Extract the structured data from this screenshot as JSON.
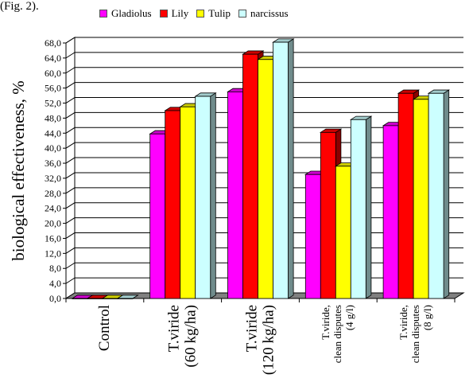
{
  "page": {
    "title_fragment": "(Fig. 2)."
  },
  "chart_data": {
    "type": "bar",
    "categories": [
      [
        "Control"
      ],
      [
        "T.viride",
        "(60 kg/ha)"
      ],
      [
        "T.viride",
        "(120 kg/ha)"
      ],
      [
        "T.viride,",
        "clean disputes",
        "(4 g/l)"
      ],
      [
        "T.viride,",
        "clean disputes",
        "(8 g/l)"
      ]
    ],
    "series": [
      {
        "name": "Gladiolus",
        "color": "#ff00ff",
        "values": [
          0.0,
          43.8,
          55.0,
          33.0,
          46.0
        ]
      },
      {
        "name": "Lily",
        "color": "#ff0000",
        "values": [
          0.0,
          50.0,
          65.0,
          44.2,
          54.6
        ]
      },
      {
        "name": "Tulip",
        "color": "#ffff00",
        "values": [
          0.0,
          51.0,
          63.6,
          35.2,
          53.0
        ]
      },
      {
        "name": "narcissus",
        "color": "#ccffff",
        "values": [
          0.0,
          53.8,
          68.2,
          47.6,
          54.6
        ]
      }
    ],
    "ylabel": "biological effectiveness, %",
    "ylim": [
      0,
      68
    ],
    "yticks": [
      "0,0",
      "4,0",
      "8,0",
      "12,0",
      "16,0",
      "20,0",
      "24,0",
      "28,0",
      "32,0",
      "36,0",
      "40,0",
      "44,0",
      "48,0",
      "52,0",
      "56,0",
      "60,0",
      "64,0",
      "68,0"
    ],
    "grid": true,
    "legend_position": "top",
    "three_d": true
  }
}
